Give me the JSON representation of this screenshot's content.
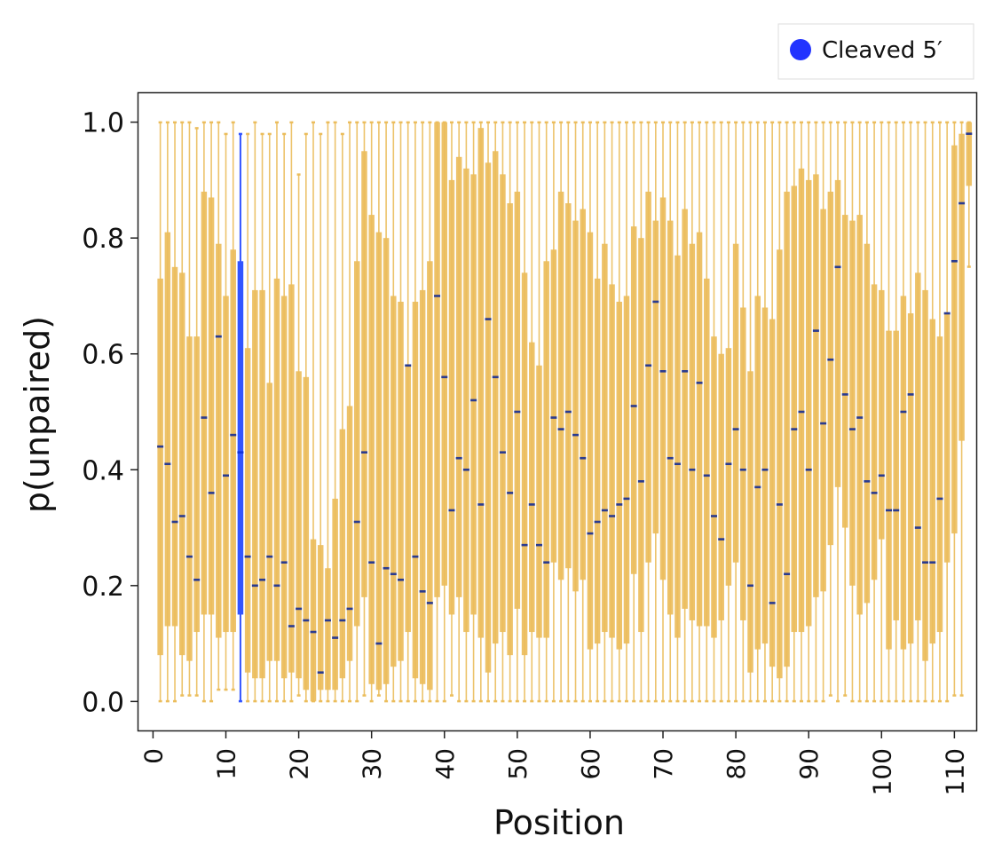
{
  "chart_data": {
    "type": "box",
    "title": "",
    "xlabel": "Position",
    "ylabel": "p(unpaired)",
    "xlim": [
      -2,
      113
    ],
    "ylim": [
      -0.05,
      1.05
    ],
    "x_ticks": [
      0,
      10,
      20,
      30,
      40,
      50,
      60,
      70,
      80,
      90,
      100,
      110
    ],
    "y_ticks": [
      0.0,
      0.2,
      0.4,
      0.6,
      0.8,
      1.0
    ],
    "grid": false,
    "legend": {
      "placement": "top-right, outside plot",
      "entries": [
        {
          "label": "Cleaved 5′",
          "color": "#2233ff"
        }
      ]
    },
    "colors": {
      "default_box": "#ebbd5c",
      "highlight_box": "#3355ff",
      "median_default": "#2a3a8f",
      "median_highlight": "#1133dd"
    },
    "highlighted_position": 12,
    "series": [
      {
        "name": "Cleaved 5′",
        "positions": [
          1,
          2,
          3,
          4,
          5,
          6,
          7,
          8,
          9,
          10,
          11,
          12,
          13,
          14,
          15,
          16,
          17,
          18,
          19,
          20,
          21,
          22,
          23,
          24,
          25,
          26,
          27,
          28,
          29,
          30,
          31,
          32,
          33,
          34,
          35,
          36,
          37,
          38,
          39,
          40,
          41,
          42,
          43,
          44,
          45,
          46,
          47,
          48,
          49,
          50,
          51,
          52,
          53,
          54,
          55,
          56,
          57,
          58,
          59,
          60,
          61,
          62,
          63,
          64,
          65,
          66,
          67,
          68,
          69,
          70,
          71,
          72,
          73,
          74,
          75,
          76,
          77,
          78,
          79,
          80,
          81,
          82,
          83,
          84,
          85,
          86,
          87,
          88,
          89,
          90,
          91,
          92,
          93,
          94,
          95,
          96,
          97,
          98,
          99,
          100,
          101,
          102,
          103,
          104,
          105,
          106,
          107,
          108,
          109,
          110,
          111,
          112
        ],
        "median": [
          0.44,
          0.41,
          0.31,
          0.32,
          0.25,
          0.21,
          0.49,
          0.36,
          0.63,
          0.39,
          0.46,
          0.43,
          0.25,
          0.2,
          0.21,
          0.25,
          0.2,
          0.24,
          0.13,
          0.16,
          0.14,
          0.12,
          0.05,
          0.14,
          0.11,
          0.14,
          0.16,
          0.31,
          0.43,
          0.24,
          0.1,
          0.23,
          0.22,
          0.21,
          0.58,
          0.25,
          0.19,
          0.17,
          0.7,
          0.56,
          0.33,
          0.42,
          0.4,
          0.52,
          0.34,
          0.66,
          0.56,
          0.43,
          0.36,
          0.5,
          0.27,
          0.34,
          0.27,
          0.24,
          0.49,
          0.47,
          0.5,
          0.46,
          0.42,
          0.29,
          0.31,
          0.33,
          0.32,
          0.34,
          0.35,
          0.51,
          0.38,
          0.58,
          0.69,
          0.57,
          0.42,
          0.41,
          0.57,
          0.4,
          0.55,
          0.39,
          0.32,
          0.28,
          0.41,
          0.47,
          0.4,
          0.2,
          0.37,
          0.4,
          0.17,
          0.34,
          0.22,
          0.47,
          0.5,
          0.4,
          0.64,
          0.48,
          0.59,
          0.75,
          0.53,
          0.47,
          0.49,
          0.38,
          0.36,
          0.39,
          0.33,
          0.33,
          0.5,
          0.53,
          0.3,
          0.24,
          0.24,
          0.35,
          0.67,
          0.76,
          0.86,
          0.98
        ],
        "q1": [
          0.08,
          0.13,
          0.13,
          0.08,
          0.07,
          0.12,
          0.15,
          0.15,
          0.11,
          0.12,
          0.12,
          0.15,
          0.05,
          0.04,
          0.04,
          0.07,
          0.07,
          0.04,
          0.05,
          0.04,
          0.02,
          0.0,
          0.02,
          0.02,
          0.02,
          0.04,
          0.07,
          0.13,
          0.18,
          0.03,
          0.02,
          0.03,
          0.06,
          0.07,
          0.12,
          0.04,
          0.03,
          0.02,
          0.18,
          0.2,
          0.15,
          0.18,
          0.12,
          0.15,
          0.11,
          0.05,
          0.1,
          0.12,
          0.08,
          0.16,
          0.08,
          0.12,
          0.11,
          0.11,
          0.24,
          0.21,
          0.23,
          0.19,
          0.21,
          0.09,
          0.1,
          0.12,
          0.11,
          0.09,
          0.1,
          0.22,
          0.12,
          0.24,
          0.29,
          0.21,
          0.15,
          0.11,
          0.16,
          0.14,
          0.13,
          0.13,
          0.11,
          0.14,
          0.2,
          0.24,
          0.14,
          0.05,
          0.09,
          0.1,
          0.06,
          0.04,
          0.06,
          0.12,
          0.12,
          0.13,
          0.18,
          0.19,
          0.27,
          0.37,
          0.3,
          0.2,
          0.15,
          0.17,
          0.21,
          0.28,
          0.09,
          0.14,
          0.09,
          0.1,
          0.14,
          0.07,
          0.1,
          0.12,
          0.24,
          0.29,
          0.45,
          0.89
        ],
        "q3": [
          0.73,
          0.81,
          0.75,
          0.74,
          0.63,
          0.63,
          0.88,
          0.87,
          0.79,
          0.7,
          0.78,
          0.76,
          0.61,
          0.71,
          0.71,
          0.55,
          0.73,
          0.7,
          0.72,
          0.57,
          0.56,
          0.28,
          0.27,
          0.23,
          0.35,
          0.47,
          0.51,
          0.76,
          0.95,
          0.84,
          0.81,
          0.8,
          0.7,
          0.69,
          0.58,
          0.69,
          0.71,
          0.76,
          1.0,
          1.0,
          0.9,
          0.94,
          0.92,
          0.91,
          0.99,
          0.93,
          0.95,
          0.91,
          0.86,
          0.88,
          0.74,
          0.62,
          0.58,
          0.76,
          0.78,
          0.88,
          0.86,
          0.83,
          0.85,
          0.81,
          0.73,
          0.79,
          0.72,
          0.69,
          0.7,
          0.82,
          0.8,
          0.88,
          0.83,
          0.87,
          0.83,
          0.77,
          0.85,
          0.79,
          0.81,
          0.73,
          0.63,
          0.6,
          0.61,
          0.79,
          0.68,
          0.57,
          0.7,
          0.68,
          0.66,
          0.78,
          0.88,
          0.89,
          0.92,
          0.9,
          0.91,
          0.85,
          0.88,
          0.9,
          0.84,
          0.83,
          0.84,
          0.79,
          0.72,
          0.71,
          0.64,
          0.64,
          0.7,
          0.67,
          0.74,
          0.71,
          0.66,
          0.63,
          0.67,
          0.96,
          0.98,
          1.0
        ],
        "whisker_low": [
          0.0,
          0.0,
          0.0,
          0.01,
          0.01,
          0.01,
          0.0,
          0.0,
          0.02,
          0.02,
          0.02,
          0.0,
          0.0,
          0.0,
          0.0,
          0.0,
          0.0,
          0.0,
          0.0,
          0.01,
          0.0,
          0.0,
          0.0,
          0.0,
          0.0,
          0.0,
          0.0,
          0.0,
          0.01,
          0.0,
          0.01,
          0.0,
          0.0,
          0.0,
          0.0,
          0.0,
          0.0,
          0.0,
          0.0,
          0.0,
          0.01,
          0.0,
          0.0,
          0.0,
          0.0,
          0.0,
          0.0,
          0.0,
          0.0,
          0.0,
          0.0,
          0.0,
          0.0,
          0.0,
          0.0,
          0.0,
          0.0,
          0.0,
          0.0,
          0.0,
          0.0,
          0.0,
          0.0,
          0.0,
          0.0,
          0.0,
          0.0,
          0.0,
          0.0,
          0.0,
          0.0,
          0.0,
          0.0,
          0.0,
          0.0,
          0.0,
          0.0,
          0.0,
          0.0,
          0.0,
          0.0,
          0.0,
          0.0,
          0.0,
          0.0,
          0.0,
          0.0,
          0.0,
          0.0,
          0.0,
          0.0,
          0.0,
          0.01,
          0.0,
          0.01,
          0.0,
          0.0,
          0.0,
          0.0,
          0.0,
          0.0,
          0.0,
          0.0,
          0.0,
          0.0,
          0.0,
          0.0,
          0.0,
          0.0,
          0.01,
          0.01,
          0.75
        ],
        "whisker_high": [
          1.0,
          1.0,
          1.0,
          1.0,
          1.0,
          0.99,
          1.0,
          1.0,
          1.0,
          0.98,
          1.0,
          0.98,
          0.98,
          1.0,
          0.98,
          0.98,
          1.0,
          0.98,
          1.0,
          0.91,
          0.98,
          1.0,
          0.98,
          1.0,
          1.0,
          0.98,
          1.0,
          1.0,
          1.0,
          1.0,
          1.0,
          1.0,
          1.0,
          1.0,
          1.0,
          1.0,
          1.0,
          1.0,
          1.0,
          1.0,
          1.0,
          1.0,
          1.0,
          1.0,
          1.0,
          1.0,
          1.0,
          1.0,
          1.0,
          1.0,
          1.0,
          1.0,
          1.0,
          1.0,
          1.0,
          1.0,
          1.0,
          1.0,
          1.0,
          1.0,
          1.0,
          1.0,
          1.0,
          1.0,
          1.0,
          1.0,
          1.0,
          1.0,
          1.0,
          1.0,
          1.0,
          1.0,
          1.0,
          1.0,
          1.0,
          1.0,
          1.0,
          1.0,
          1.0,
          1.0,
          1.0,
          1.0,
          1.0,
          1.0,
          1.0,
          1.0,
          1.0,
          1.0,
          1.0,
          1.0,
          1.0,
          1.0,
          1.0,
          1.0,
          1.0,
          1.0,
          1.0,
          1.0,
          1.0,
          1.0,
          1.0,
          1.0,
          1.0,
          1.0,
          1.0,
          1.0,
          1.0,
          1.0,
          1.0,
          1.0,
          1.0,
          1.0
        ]
      }
    ]
  }
}
